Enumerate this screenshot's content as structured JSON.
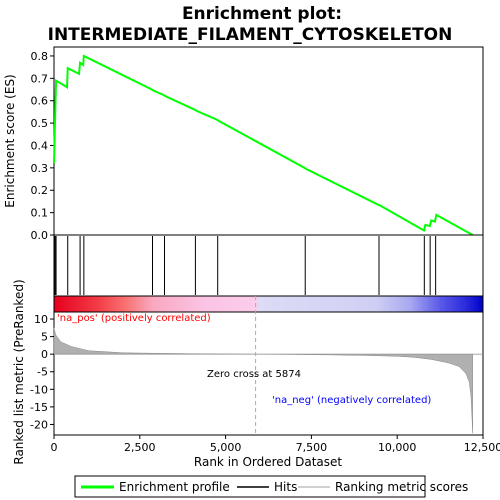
{
  "chart_data": {
    "type": "line",
    "title": "Enrichment plot: INTERMEDIATE_FILAMENT_CYTOSKELETON",
    "top_panel": {
      "ylabel": "Enrichment score (ES)",
      "ylim": [
        0,
        0.84
      ],
      "yticks": [
        "0.0",
        "0.1",
        "0.2",
        "0.3",
        "0.4",
        "0.5",
        "0.6",
        "0.7",
        "0.8"
      ],
      "series": [
        {
          "name": "Enrichment profile",
          "color": "#00ff00",
          "x": [
            0,
            30,
            60,
            380,
            400,
            730,
            760,
            850,
            870,
            2850,
            2900,
            3200,
            3250,
            4100,
            4150,
            4750,
            4800,
            7300,
            7350,
            9450,
            9500,
            10780,
            10820,
            10950,
            10990,
            11100,
            11140,
            12200
          ],
          "y": [
            0.32,
            0.51,
            0.69,
            0.66,
            0.745,
            0.72,
            0.77,
            0.76,
            0.8,
            0.65,
            0.645,
            0.625,
            0.62,
            0.56,
            0.555,
            0.515,
            0.51,
            0.3,
            0.295,
            0.135,
            0.132,
            0.02,
            0.045,
            0.04,
            0.065,
            0.06,
            0.09,
            0.0
          ]
        }
      ]
    },
    "hits": {
      "name": "Hits",
      "x": [
        10,
        30,
        60,
        400,
        760,
        870,
        2870,
        3220,
        4120,
        4770,
        7320,
        9470,
        10790,
        10960,
        11120
      ]
    },
    "bottom_panel": {
      "ylabel": "Ranked list metric (PreRanked)",
      "xlabel": "Rank in Ordered Dataset",
      "ylim": [
        -23,
        12
      ],
      "yticks": [
        "10",
        "5",
        "0",
        "-5",
        "-10",
        "-15",
        "-20"
      ],
      "xlim": [
        0,
        12500
      ],
      "xticks": [
        "0",
        "2,500",
        "5,000",
        "7,500",
        "10,000",
        "12,500"
      ],
      "metric_x": [
        0,
        50,
        200,
        500,
        1000,
        2000,
        3000,
        4000,
        5000,
        5874,
        7000,
        8000,
        9000,
        10000,
        10500,
        11000,
        11500,
        11800,
        12000,
        12100,
        12150,
        12200
      ],
      "metric_y": [
        7.5,
        5.5,
        3.5,
        2.2,
        1.0,
        0.4,
        0.25,
        0.15,
        0.08,
        0.0,
        -0.1,
        -0.2,
        -0.35,
        -0.6,
        -0.9,
        -1.5,
        -2.5,
        -3.5,
        -5.5,
        -8.0,
        -12.0,
        -22.5
      ],
      "zero_cross_label": "Zero cross at 5874",
      "zero_cross_x": 5874,
      "pos_label": "'na_pos' (positively correlated)",
      "neg_label": "'na_neg' (negatively correlated)",
      "pos_color": "#ff0000",
      "neg_color": "#0000ff"
    },
    "legend": {
      "placement": "bottom",
      "items": [
        {
          "name": "Enrichment profile",
          "color": "#00ff00"
        },
        {
          "name": "Hits",
          "color": "#000000"
        },
        {
          "name": "Ranking metric scores",
          "color": "#c0c0c0"
        }
      ]
    }
  }
}
